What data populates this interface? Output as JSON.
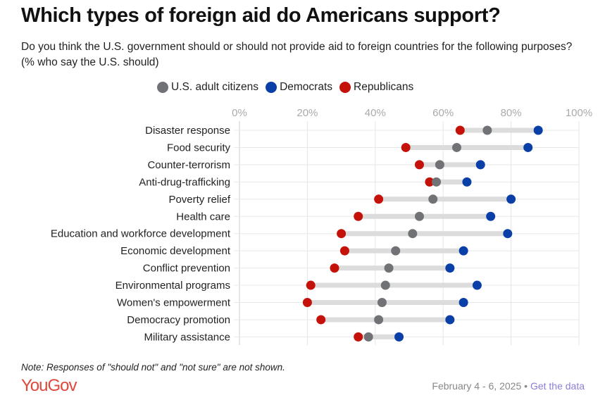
{
  "title": "Which types of foreign aid do Americans support?",
  "subtitle": "Do you think the U.S. government should or should not provide aid to foreign countries for the following purposes? (% who say the U.S. should)",
  "note": "Note: Responses of \"should not\" and \"not sure\" are not shown.",
  "logo": "YouGov",
  "date": "February 4 - 6, 2025",
  "separator": "•",
  "link": "Get the data",
  "chart_data": {
    "type": "dot-range",
    "xlim": [
      0,
      100
    ],
    "xticks": [
      "0%",
      "20%",
      "40%",
      "60%",
      "80%",
      "100%"
    ],
    "xtick_values": [
      0,
      20,
      40,
      60,
      80,
      100
    ],
    "legend_position": "top",
    "categories": [
      "Disaster response",
      "Food security",
      "Counter-terrorism",
      "Anti-drug-trafficking",
      "Poverty relief",
      "Health care",
      "Education and workforce development",
      "Economic development",
      "Conflict prevention",
      "Environmental programs",
      "Women's empowerment",
      "Democracy promotion",
      "Military assistance"
    ],
    "series": [
      {
        "name": "U.S. adult citizens",
        "color": "#707276",
        "values": [
          73,
          64,
          59,
          58,
          57,
          53,
          51,
          46,
          44,
          43,
          42,
          41,
          38
        ]
      },
      {
        "name": "Democrats",
        "color": "#0a3fa8",
        "values": [
          88,
          85,
          71,
          67,
          80,
          74,
          79,
          66,
          62,
          70,
          66,
          62,
          47
        ]
      },
      {
        "name": "Republicans",
        "color": "#c4120b",
        "values": [
          65,
          49,
          53,
          56,
          41,
          35,
          30,
          31,
          28,
          21,
          20,
          24,
          35
        ]
      }
    ]
  }
}
